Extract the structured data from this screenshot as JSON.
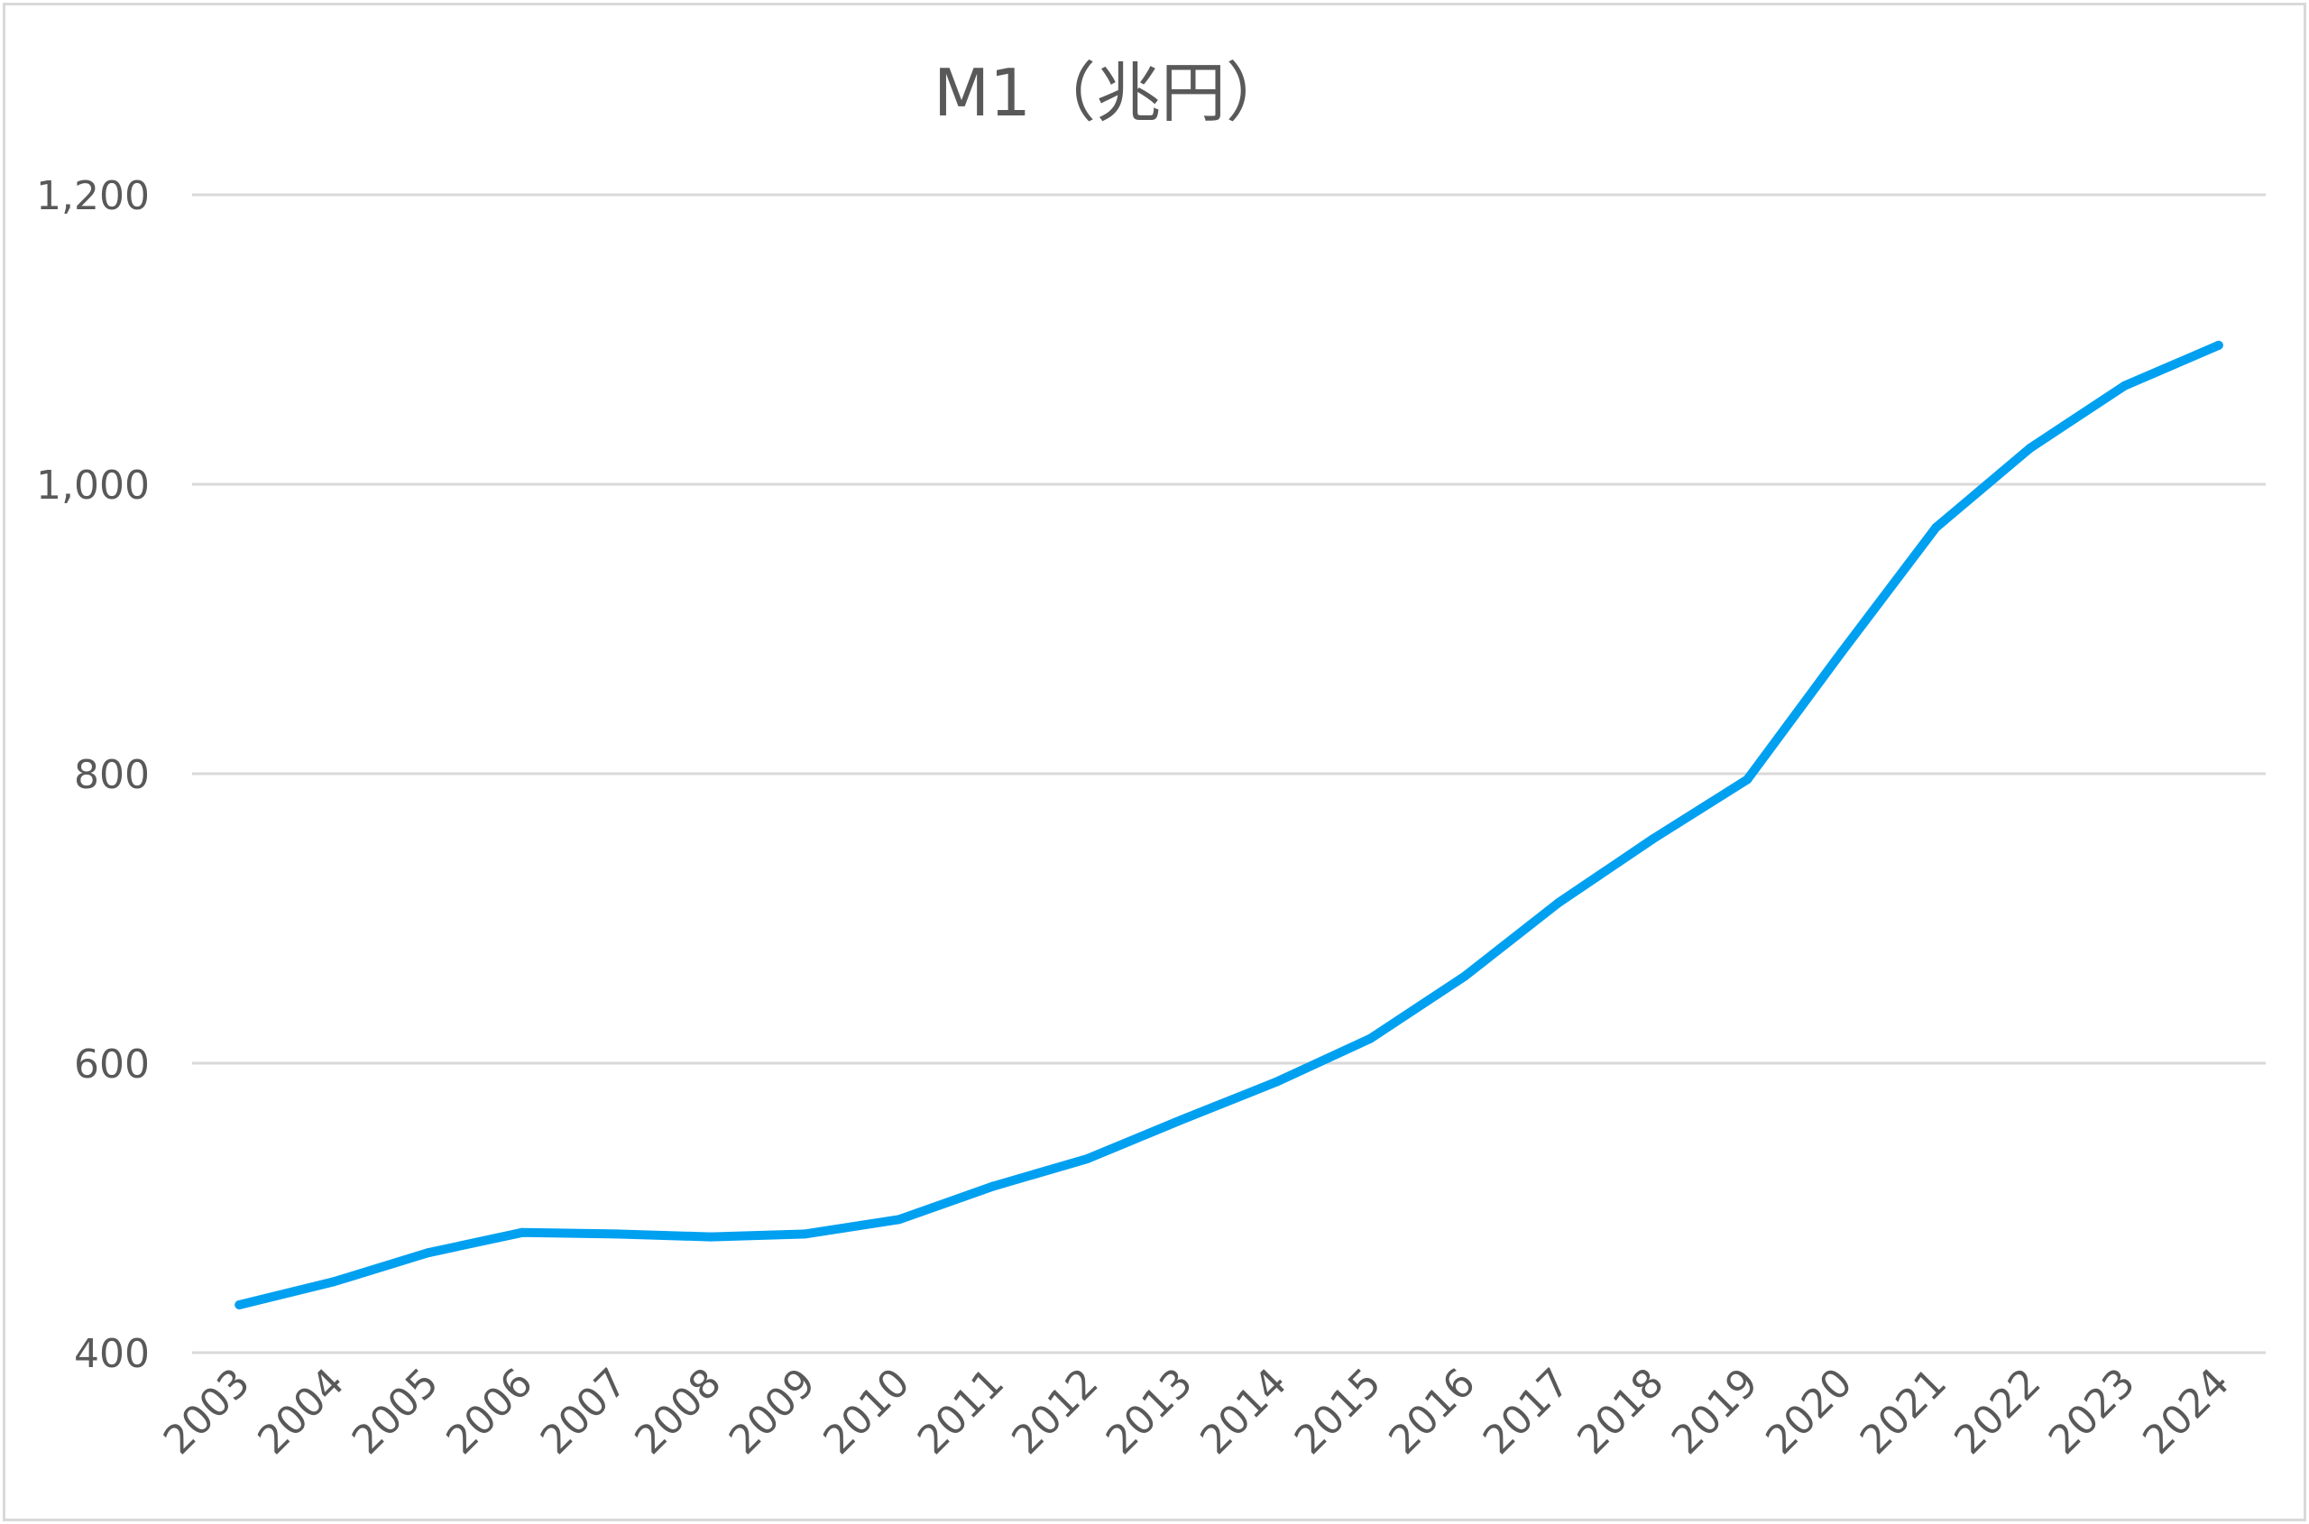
{
  "chart_data": {
    "type": "line",
    "title": "M1（兆円）",
    "xlabel": "",
    "ylabel": "",
    "categories": [
      "2003",
      "2004",
      "2005",
      "2006",
      "2007",
      "2008",
      "2009",
      "2010",
      "2011",
      "2012",
      "2013",
      "2014",
      "2015",
      "2016",
      "2017",
      "2018",
      "2019",
      "2020",
      "2021",
      "2022",
      "2023",
      "2024"
    ],
    "series": [
      {
        "values": [
          433,
          449,
          469,
          483,
          482,
          480,
          482,
          492,
          515,
          534,
          561,
          587,
          617,
          660,
          711,
          755,
          796,
          884,
          970,
          1025,
          1068,
          1096
        ]
      }
    ],
    "ylim": [
      400,
      1200
    ],
    "yticks": [
      400,
      600,
      800,
      1000,
      1200
    ],
    "ytick_labels": [
      "400",
      "600",
      "800",
      "1,000",
      "1,200"
    ],
    "grid": true,
    "legend": "none",
    "colors": {
      "series": "#00a0f0",
      "grid": "#d9d9d9",
      "text": "#595959",
      "border": "#d9d9d9"
    }
  }
}
